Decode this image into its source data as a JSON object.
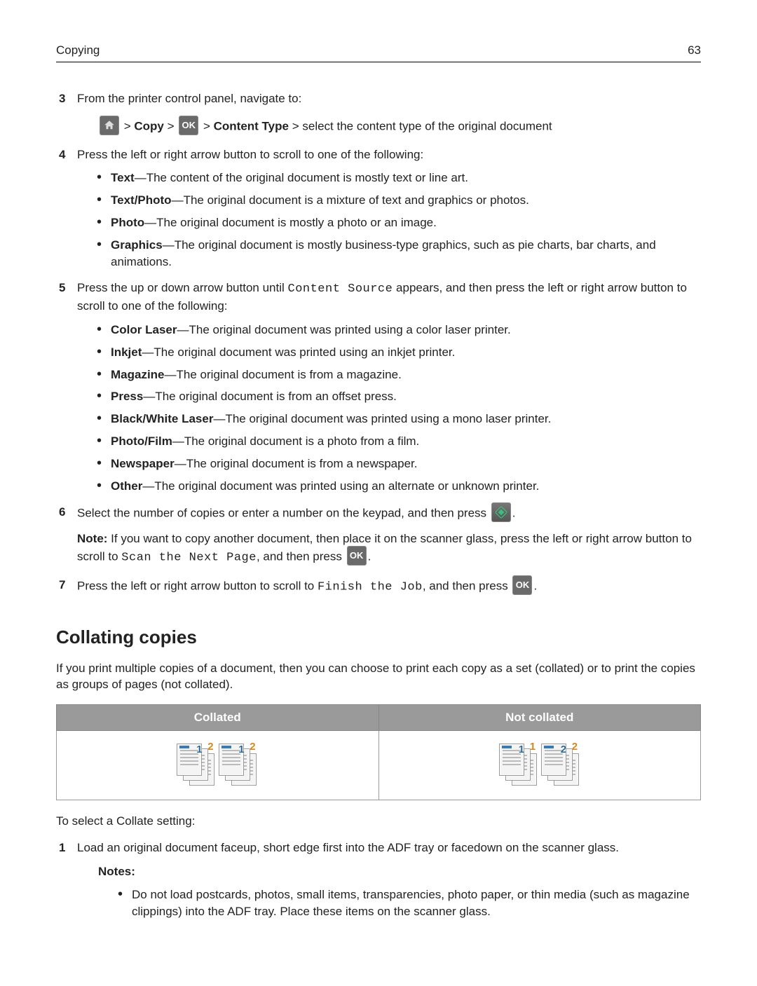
{
  "header": {
    "section": "Copying",
    "page": "63"
  },
  "step3": {
    "num": "3",
    "text": "From the printer control panel, navigate to:",
    "copy": "Copy",
    "contentType": "Content Type",
    "tail": " > select the content type of the original document"
  },
  "step4": {
    "num": "4",
    "text": "Press the left or right arrow button to scroll to one of the following:",
    "items": [
      {
        "term": "Text",
        "desc": "—The content of the original document is mostly text or line art."
      },
      {
        "term": "Text/Photo",
        "desc": "—The original document is a mixture of text and graphics or photos."
      },
      {
        "term": "Photo",
        "desc": "—The original document is mostly a photo or an image."
      },
      {
        "term": "Graphics",
        "desc": "—The original document is mostly business‑type graphics, such as pie charts, bar charts, and animations."
      }
    ]
  },
  "step5": {
    "num": "5",
    "pre": "Press the up or down arrow button until ",
    "code": "Content Source",
    "post": " appears, and then press the left or right arrow button to scroll to one of the following:",
    "items": [
      {
        "term": "Color Laser",
        "desc": "—The original document was printed using a color laser printer."
      },
      {
        "term": "Inkjet",
        "desc": "—The original document was printed using an inkjet printer."
      },
      {
        "term": "Magazine",
        "desc": "—The original document is from a magazine."
      },
      {
        "term": "Press",
        "desc": "—The original document is from an offset press."
      },
      {
        "term": "Black/White Laser",
        "desc": "—The original document was printed using a mono laser printer."
      },
      {
        "term": "Photo/Film",
        "desc": "—The original document is a photo from a film."
      },
      {
        "term": "Newspaper",
        "desc": "—The original document is from a newspaper."
      },
      {
        "term": "Other",
        "desc": "—The original document was printed using an alternate or unknown printer."
      }
    ]
  },
  "step6": {
    "num": "6",
    "text": "Select the number of copies or enter a number on the keypad, and then press ",
    "noteLabel": "Note:",
    "noteA": " If you want to copy another document, then place it on the scanner glass, press the left or right arrow button to scroll to ",
    "noteCode": "Scan the Next Page",
    "noteB": ", and then press "
  },
  "step7": {
    "num": "7",
    "pre": "Press the left or right arrow button to scroll to ",
    "code": "Finish the Job",
    "post": ", and then press "
  },
  "collate": {
    "heading": "Collating copies",
    "intro": "If you print multiple copies of a document, then you can choose to print each copy as a set (collated) or to print the copies as groups of pages (not collated).",
    "th1": "Collated",
    "th2": "Not collated",
    "toSelect": "To select a Collate setting:",
    "diagram": {
      "collated": [
        {
          "front": "1",
          "back": "2"
        },
        {
          "front": "1",
          "back": "2"
        }
      ],
      "notCollated": [
        {
          "front": "1",
          "back": "1"
        },
        {
          "front": "2",
          "back": "2"
        }
      ],
      "colors": {
        "frontBadge": "#2e6aa0",
        "backBadge": "#d9871a",
        "pageBar": "#3a7ab5"
      }
    }
  },
  "cstep1": {
    "num": "1",
    "text": "Load an original document faceup, short edge first into the ADF tray or facedown on the scanner glass.",
    "notesLabel": "Notes:",
    "notes": [
      "Do not load postcards, photos, small items, transparencies, photo paper, or thin media (such as magazine clippings) into the ADF tray. Place these items on the scanner glass."
    ]
  },
  "icons": {
    "ok": "OK"
  }
}
